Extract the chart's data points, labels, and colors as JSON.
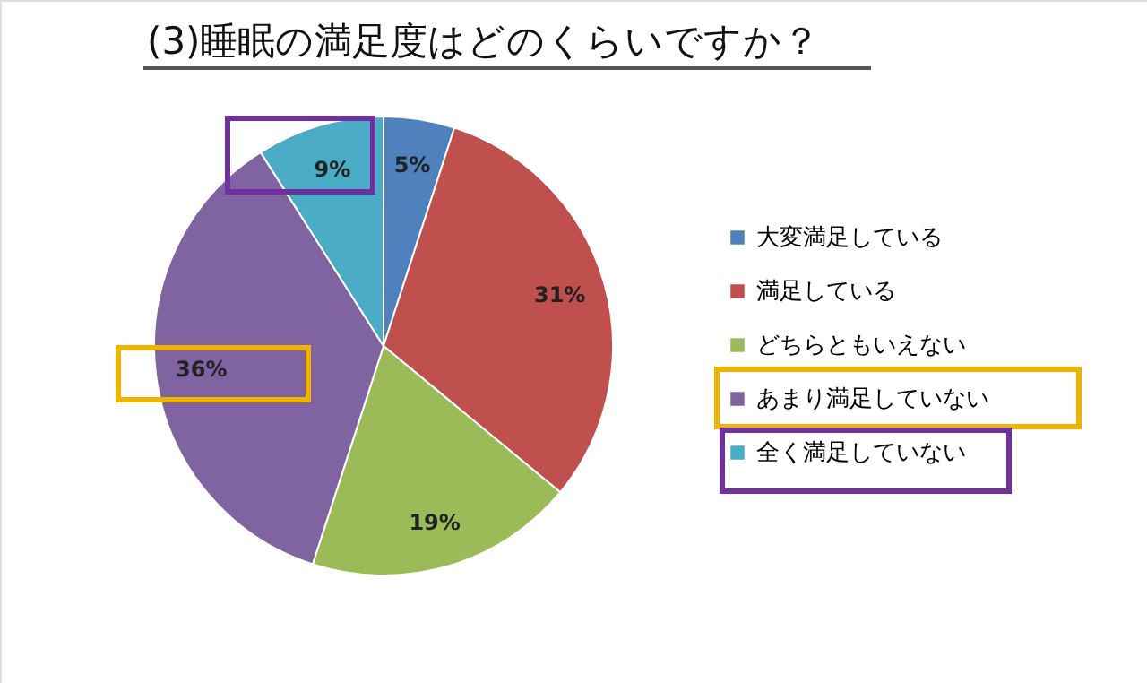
{
  "chart_data": {
    "type": "pie",
    "title": "(3)睡眠の満足度はどのくらいですか？",
    "categories": [
      "大変満足している",
      "満足している",
      "どちらともいえない",
      "あまり満足していない",
      "全く満足していない"
    ],
    "values": [
      5,
      31,
      19,
      36,
      9
    ],
    "colors": [
      "#4f81bd",
      "#c0504d",
      "#9bbb59",
      "#8064a2",
      "#4bacc6"
    ],
    "value_labels": [
      "5%",
      "31%",
      "19%",
      "36%",
      "9%"
    ],
    "legend": "right"
  }
}
